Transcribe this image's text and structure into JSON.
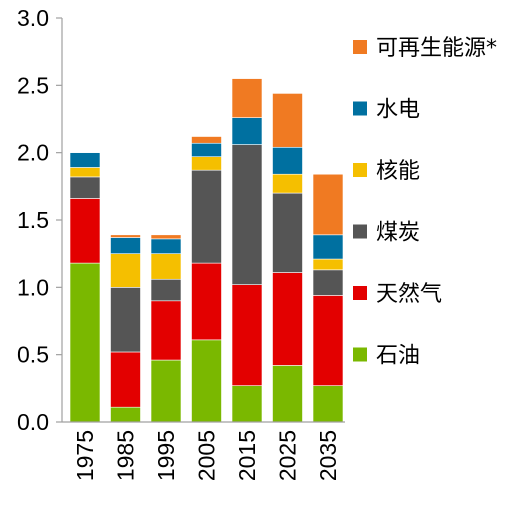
{
  "chart_data": {
    "type": "bar",
    "stacked": true,
    "title": "",
    "xlabel": "",
    "ylabel": "",
    "ylim": [
      0,
      3.0
    ],
    "yticks": [
      "0.0",
      "0.5",
      "1.0",
      "1.5",
      "2.0",
      "2.5",
      "3.0"
    ],
    "categories": [
      "1975",
      "1985",
      "1995",
      "2005",
      "2015",
      "2025",
      "2035"
    ],
    "legend_position": "right",
    "series": [
      {
        "name": "石油",
        "color": "#7ab800",
        "values": [
          1.18,
          0.11,
          0.46,
          0.61,
          0.27,
          0.42,
          0.27
        ]
      },
      {
        "name": "天然气",
        "color": "#e30000",
        "values": [
          0.48,
          0.41,
          0.44,
          0.57,
          0.75,
          0.69,
          0.67
        ]
      },
      {
        "name": "煤炭",
        "color": "#555555",
        "values": [
          0.16,
          0.48,
          0.16,
          0.69,
          1.04,
          0.59,
          0.19
        ]
      },
      {
        "name": "核能",
        "color": "#f5bf00",
        "values": [
          0.07,
          0.25,
          0.19,
          0.1,
          0.0,
          0.14,
          0.08
        ]
      },
      {
        "name": "水电",
        "color": "#0070a0",
        "values": [
          0.11,
          0.12,
          0.11,
          0.1,
          0.2,
          0.2,
          0.18
        ]
      },
      {
        "name": "可再生能源*",
        "color": "#f07a22",
        "values": [
          0.0,
          0.02,
          0.03,
          0.05,
          0.29,
          0.4,
          0.45
        ]
      }
    ]
  }
}
